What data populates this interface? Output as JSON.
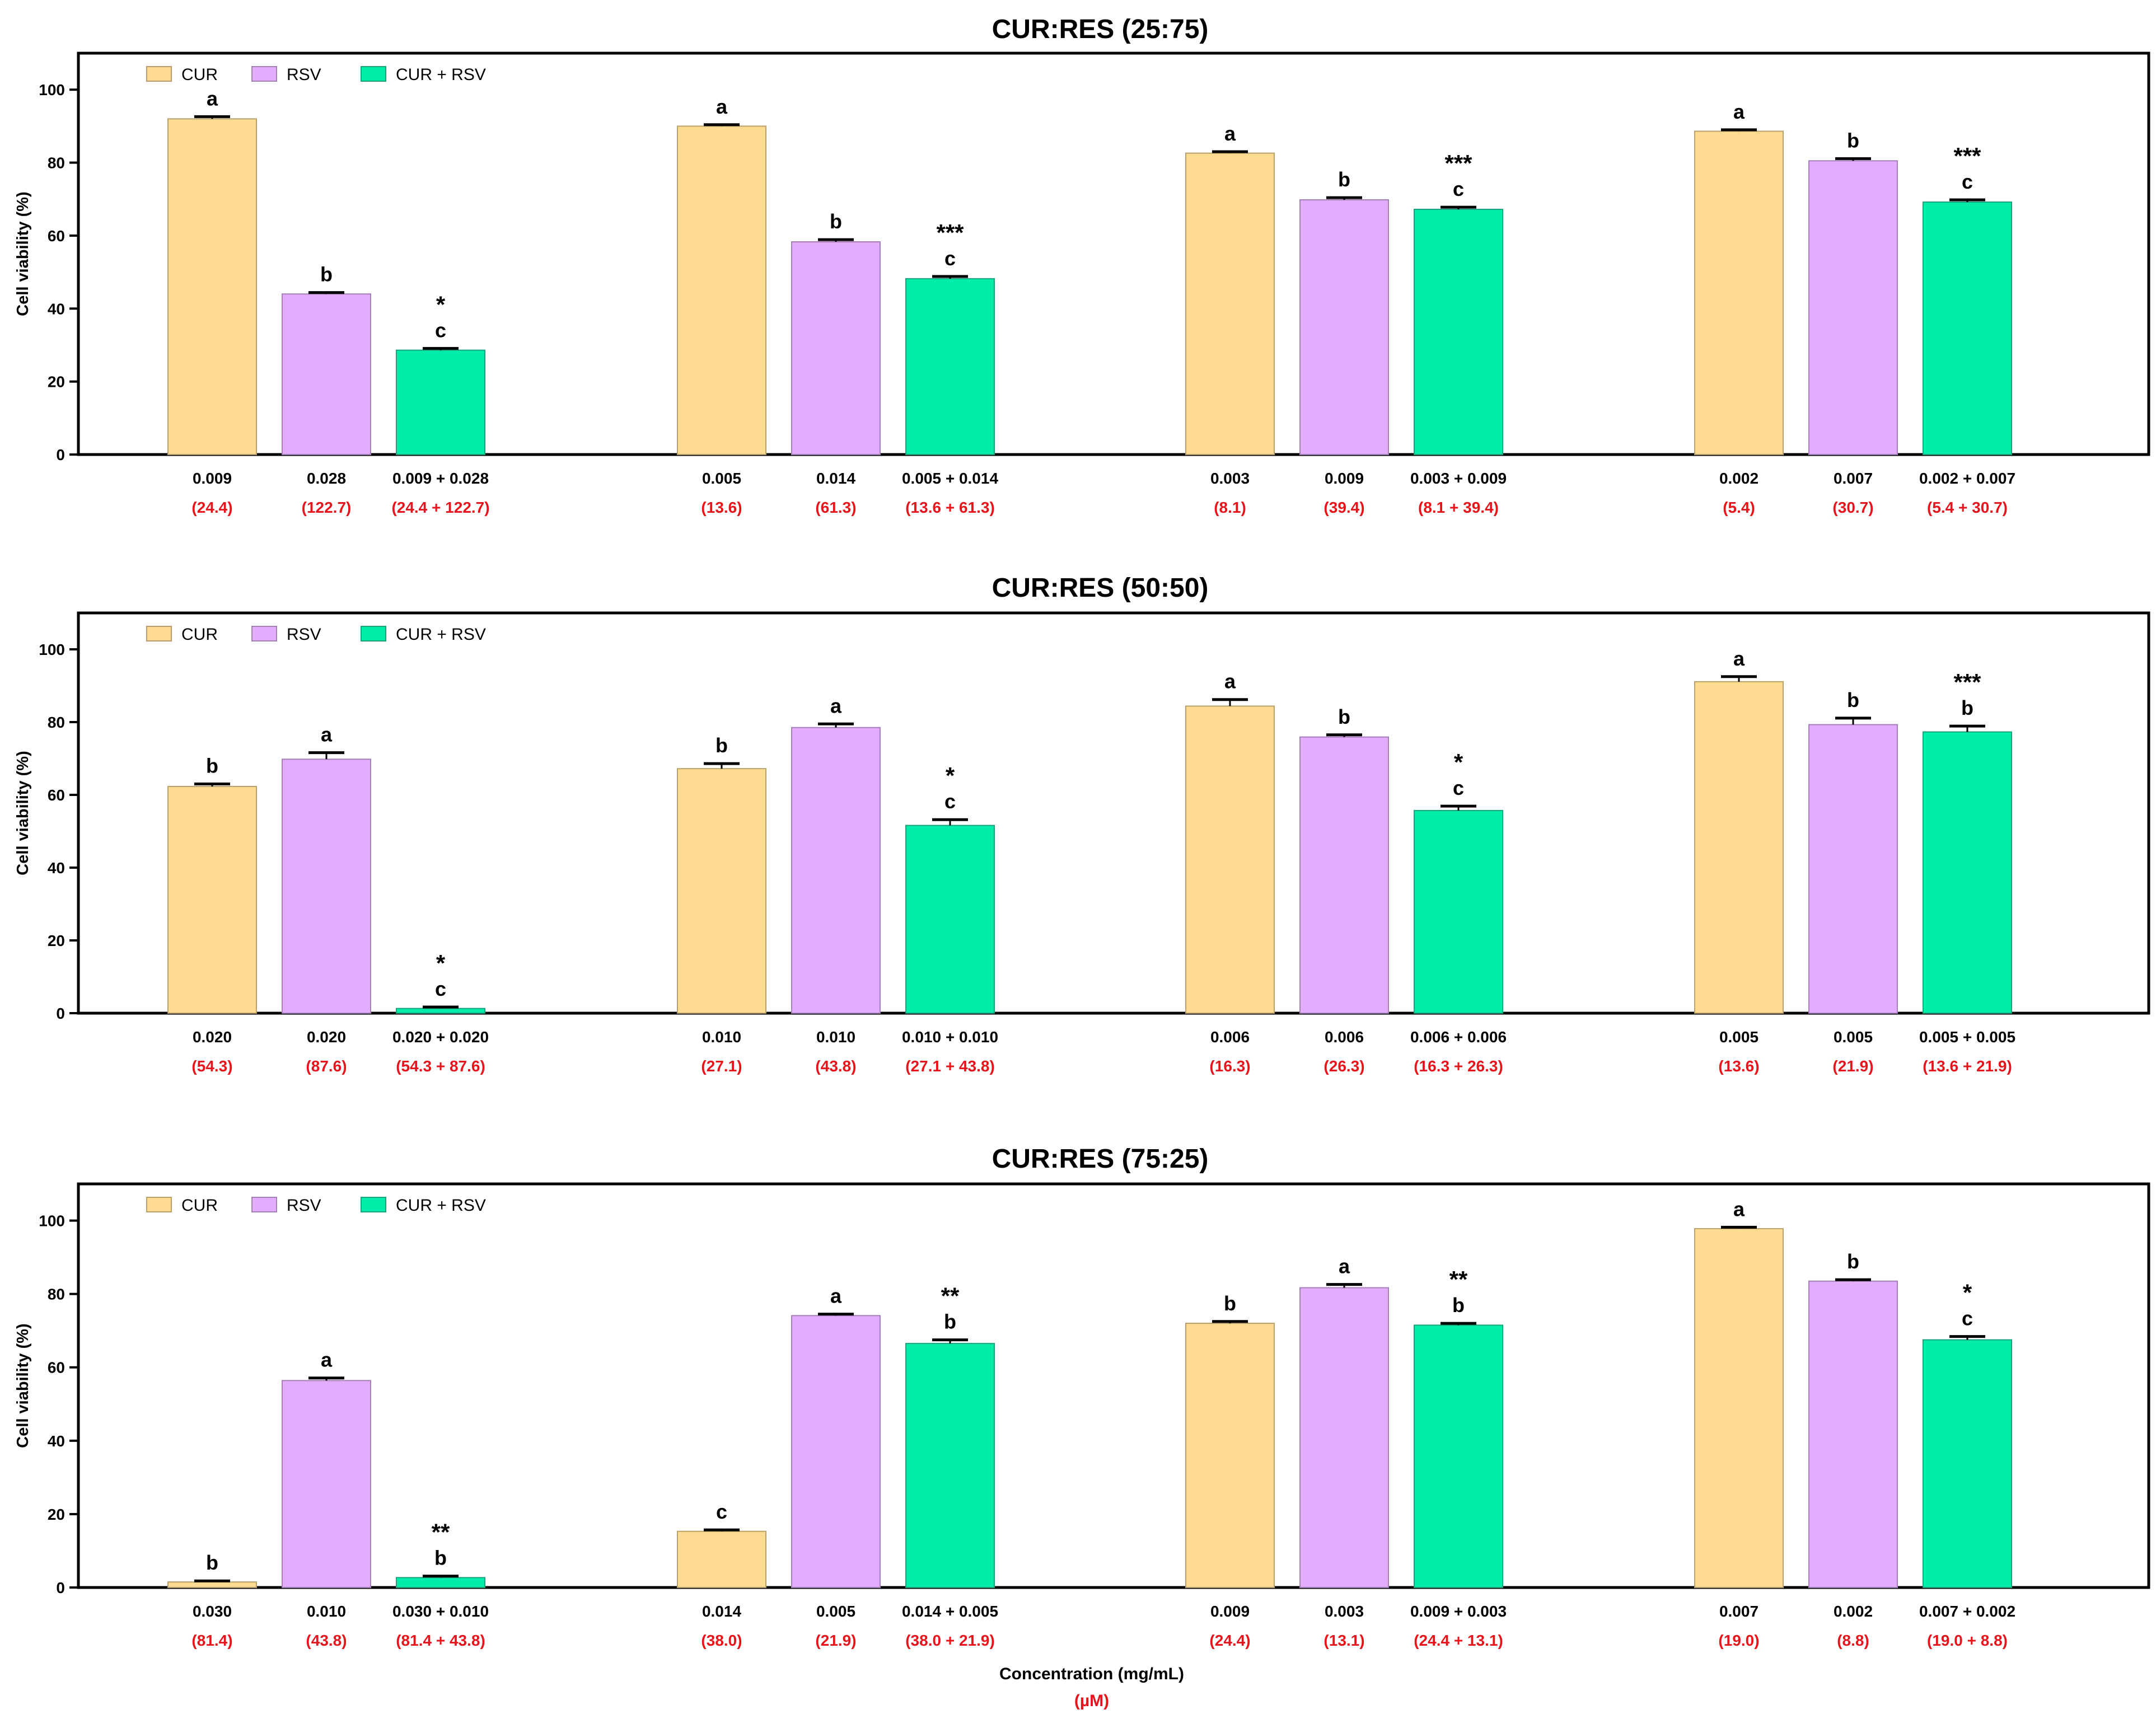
{
  "colors": {
    "CUR": "#fddc91",
    "RSV": "#e3acfc",
    "CUR + RSV": "#02edaa",
    "umol_text": "#e8141b"
  },
  "chart_data": [
    {
      "type": "bar",
      "title": "CUR:RES (25:75)",
      "ylabel": "Cell viability (%)",
      "ylim": [
        0,
        110
      ],
      "yticks": [
        0,
        20,
        40,
        60,
        80,
        100
      ],
      "legend": {
        "position": "top-left",
        "entries": [
          "CUR",
          "RSV",
          "CUR + RSV"
        ]
      },
      "groups": [
        {
          "bars": [
            {
              "series": "CUR",
              "value": 92.0,
              "err": 0.6,
              "conc": "0.009",
              "umol": "(24.4)",
              "letter": "a",
              "stars": ""
            },
            {
              "series": "RSV",
              "value": 44.0,
              "err": 0.4,
              "conc": "0.028",
              "umol": "(122.7)",
              "letter": "b",
              "stars": ""
            },
            {
              "series": "CUR + RSV",
              "value": 28.6,
              "err": 0.5,
              "conc": "0.009 + 0.028",
              "umol": "(24.4 + 122.7)",
              "letter": "c",
              "stars": "*"
            }
          ]
        },
        {
          "bars": [
            {
              "series": "CUR",
              "value": 90.0,
              "err": 0.4,
              "conc": "0.005",
              "umol": "(13.6)",
              "letter": "a",
              "stars": ""
            },
            {
              "series": "RSV",
              "value": 58.3,
              "err": 0.6,
              "conc": "0.014",
              "umol": "(61.3)",
              "letter": "b",
              "stars": ""
            },
            {
              "series": "CUR + RSV",
              "value": 48.2,
              "err": 0.6,
              "conc": "0.005 + 0.014",
              "umol": "(13.6 + 61.3)",
              "letter": "c",
              "stars": "***"
            }
          ]
        },
        {
          "bars": [
            {
              "series": "CUR",
              "value": 82.6,
              "err": 0.4,
              "conc": "0.003",
              "umol": "(8.1)",
              "letter": "a",
              "stars": ""
            },
            {
              "series": "RSV",
              "value": 69.8,
              "err": 0.6,
              "conc": "0.009",
              "umol": "(39.4)",
              "letter": "b",
              "stars": ""
            },
            {
              "series": "CUR + RSV",
              "value": 67.2,
              "err": 0.6,
              "conc": "0.003 + 0.009",
              "umol": "(8.1 + 39.4)",
              "letter": "c",
              "stars": "***"
            }
          ]
        },
        {
          "bars": [
            {
              "series": "CUR",
              "value": 88.6,
              "err": 0.4,
              "conc": "0.002",
              "umol": "(5.4)",
              "letter": "a",
              "stars": ""
            },
            {
              "series": "RSV",
              "value": 80.5,
              "err": 0.6,
              "conc": "0.007",
              "umol": "(30.7)",
              "letter": "b",
              "stars": ""
            },
            {
              "series": "CUR + RSV",
              "value": 69.2,
              "err": 0.6,
              "conc": "0.002 + 0.007",
              "umol": "(5.4 + 30.7)",
              "letter": "c",
              "stars": "***"
            }
          ]
        }
      ]
    },
    {
      "type": "bar",
      "title": "CUR:RES (50:50)",
      "ylabel": "Cell viability (%)",
      "ylim": [
        0,
        110
      ],
      "yticks": [
        0,
        20,
        40,
        60,
        80,
        100
      ],
      "legend": {
        "position": "top-left",
        "entries": [
          "CUR",
          "RSV",
          "CUR + RSV"
        ]
      },
      "groups": [
        {
          "bars": [
            {
              "series": "CUR",
              "value": 62.3,
              "err": 0.7,
              "conc": "0.020",
              "umol": "(54.3)",
              "letter": "b",
              "stars": ""
            },
            {
              "series": "RSV",
              "value": 69.8,
              "err": 1.8,
              "conc": "0.020",
              "umol": "(87.6)",
              "letter": "a",
              "stars": ""
            },
            {
              "series": "CUR + RSV",
              "value": 1.3,
              "err": 0.4,
              "conc": "0.020 + 0.020",
              "umol": "(54.3 + 87.6)",
              "letter": "c",
              "stars": "*"
            }
          ]
        },
        {
          "bars": [
            {
              "series": "CUR",
              "value": 67.2,
              "err": 1.4,
              "conc": "0.010",
              "umol": "(27.1)",
              "letter": "b",
              "stars": ""
            },
            {
              "series": "RSV",
              "value": 78.5,
              "err": 1.0,
              "conc": "0.010",
              "umol": "(43.8)",
              "letter": "a",
              "stars": ""
            },
            {
              "series": "CUR + RSV",
              "value": 51.6,
              "err": 1.6,
              "conc": "0.010 + 0.010",
              "umol": "(27.1 + 43.8)",
              "letter": "c",
              "stars": "*"
            }
          ]
        },
        {
          "bars": [
            {
              "series": "CUR",
              "value": 84.4,
              "err": 1.8,
              "conc": "0.006",
              "umol": "(16.3)",
              "letter": "a",
              "stars": ""
            },
            {
              "series": "RSV",
              "value": 75.9,
              "err": 0.6,
              "conc": "0.006",
              "umol": "(26.3)",
              "letter": "b",
              "stars": ""
            },
            {
              "series": "CUR + RSV",
              "value": 55.7,
              "err": 1.2,
              "conc": "0.006 + 0.006",
              "umol": "(16.3 + 26.3)",
              "letter": "c",
              "stars": "*"
            }
          ]
        },
        {
          "bars": [
            {
              "series": "CUR",
              "value": 91.1,
              "err": 1.4,
              "conc": "0.005",
              "umol": "(13.6)",
              "letter": "a",
              "stars": ""
            },
            {
              "series": "RSV",
              "value": 79.3,
              "err": 1.8,
              "conc": "0.005",
              "umol": "(21.9)",
              "letter": "b",
              "stars": ""
            },
            {
              "series": "CUR + RSV",
              "value": 77.3,
              "err": 1.6,
              "conc": "0.005 + 0.005",
              "umol": "(13.6 + 21.9)",
              "letter": "b",
              "stars": "***"
            }
          ]
        }
      ]
    },
    {
      "type": "bar",
      "title": "CUR:RES (75:25)",
      "ylabel": "Cell viability (%)",
      "ylim": [
        0,
        110
      ],
      "yticks": [
        0,
        20,
        40,
        60,
        80,
        100
      ],
      "legend": {
        "position": "top-left",
        "entries": [
          "CUR",
          "RSV",
          "CUR + RSV"
        ]
      },
      "groups": [
        {
          "bars": [
            {
              "series": "CUR",
              "value": 1.5,
              "err": 0.3,
              "conc": "0.030",
              "umol": "(81.4)",
              "letter": "b",
              "stars": ""
            },
            {
              "series": "RSV",
              "value": 56.4,
              "err": 0.7,
              "conc": "0.010",
              "umol": "(43.8)",
              "letter": "a",
              "stars": ""
            },
            {
              "series": "CUR + RSV",
              "value": 2.7,
              "err": 0.4,
              "conc": "0.030 + 0.010",
              "umol": "(81.4 + 43.8)",
              "letter": "b",
              "stars": "**"
            }
          ]
        },
        {
          "bars": [
            {
              "series": "CUR",
              "value": 15.3,
              "err": 0.4,
              "conc": "0.014",
              "umol": "(38.0)",
              "letter": "c",
              "stars": ""
            },
            {
              "series": "RSV",
              "value": 74.1,
              "err": 0.4,
              "conc": "0.005",
              "umol": "(21.9)",
              "letter": "a",
              "stars": ""
            },
            {
              "series": "CUR + RSV",
              "value": 66.5,
              "err": 1.0,
              "conc": "0.014 + 0.005",
              "umol": "(38.0 + 21.9)",
              "letter": "b",
              "stars": "**"
            }
          ]
        },
        {
          "bars": [
            {
              "series": "CUR",
              "value": 72.0,
              "err": 0.5,
              "conc": "0.009",
              "umol": "(24.4)",
              "letter": "b",
              "stars": ""
            },
            {
              "series": "RSV",
              "value": 81.7,
              "err": 0.9,
              "conc": "0.003",
              "umol": "(13.1)",
              "letter": "a",
              "stars": ""
            },
            {
              "series": "CUR + RSV",
              "value": 71.5,
              "err": 0.5,
              "conc": "0.009 + 0.003",
              "umol": "(24.4 + 13.1)",
              "letter": "b",
              "stars": "**"
            }
          ]
        },
        {
          "bars": [
            {
              "series": "CUR",
              "value": 97.8,
              "err": 0.4,
              "conc": "0.007",
              "umol": "(19.0)",
              "letter": "a",
              "stars": ""
            },
            {
              "series": "RSV",
              "value": 83.5,
              "err": 0.4,
              "conc": "0.002",
              "umol": "(8.8)",
              "letter": "b",
              "stars": ""
            },
            {
              "series": "CUR + RSV",
              "value": 67.5,
              "err": 0.9,
              "conc": "0.007 + 0.002",
              "umol": "(19.0 + 8.8)",
              "letter": "c",
              "stars": "*"
            }
          ]
        }
      ]
    }
  ],
  "xaxis": {
    "label": "Concentration (mg/mL)",
    "unit_label": "(µM)"
  }
}
